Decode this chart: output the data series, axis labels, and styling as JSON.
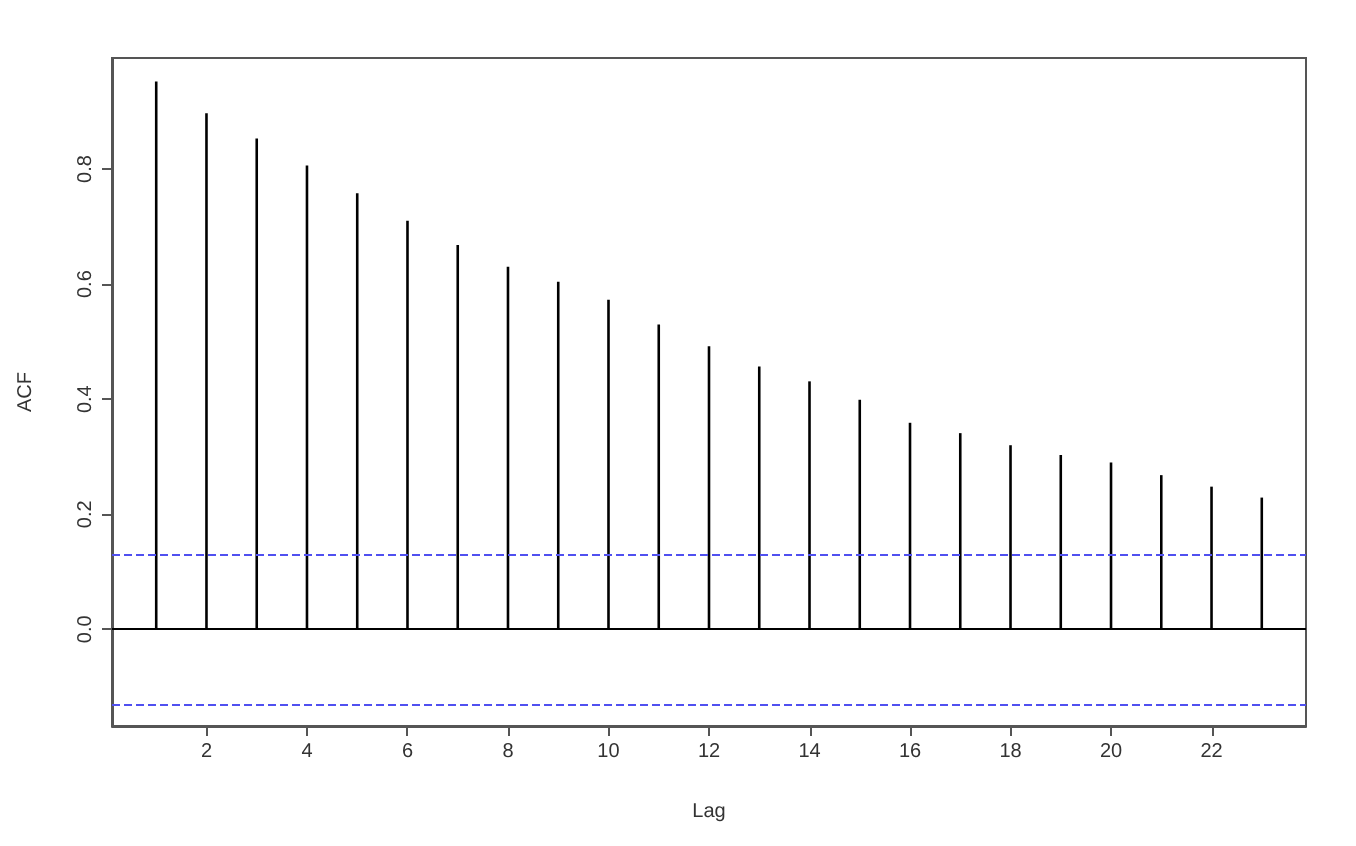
{
  "chart_data": {
    "type": "bar",
    "xlabel": "Lag",
    "ylabel": "ACF",
    "x": [
      1,
      2,
      3,
      4,
      5,
      6,
      7,
      8,
      9,
      10,
      11,
      12,
      13,
      14,
      15,
      16,
      17,
      18,
      19,
      20,
      21,
      22,
      23
    ],
    "values": [
      0.952,
      0.897,
      0.853,
      0.806,
      0.758,
      0.71,
      0.668,
      0.63,
      0.604,
      0.573,
      0.53,
      0.492,
      0.457,
      0.431,
      0.399,
      0.359,
      0.341,
      0.32,
      0.303,
      0.29,
      0.268,
      0.248,
      0.229
    ],
    "color": "#000000",
    "xlim": [
      0.12,
      23.88
    ],
    "xticks": [
      2,
      4,
      6,
      8,
      10,
      12,
      14,
      16,
      18,
      20,
      22
    ],
    "ylim": [
      -0.168,
      0.993
    ],
    "yticks": [
      {
        "value": 0,
        "label": "0.0"
      },
      0.2,
      0.4,
      0.6,
      0.8
    ],
    "ref_lines": [
      {
        "axis": "y",
        "value": 0,
        "color": "#000000",
        "line_style": "solid"
      },
      {
        "axis": "y",
        "value": 0.127,
        "color": "#5050f0",
        "line_style": "dashed"
      },
      {
        "axis": "y",
        "value": -0.127,
        "color": "#5050f0",
        "line_style": "dashed"
      }
    ],
    "grid": false
  }
}
